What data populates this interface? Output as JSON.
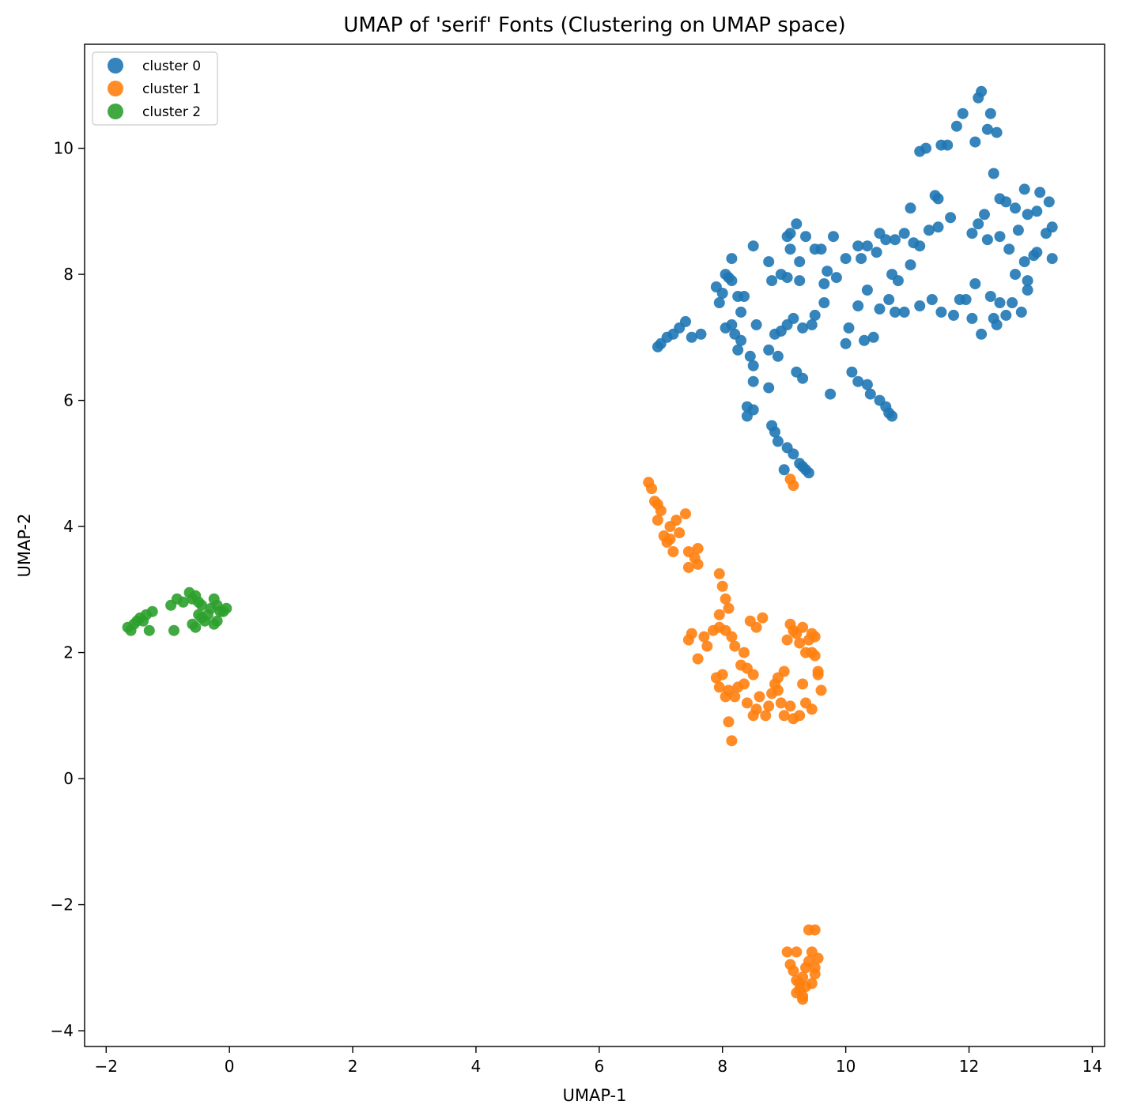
{
  "chart_data": {
    "type": "scatter",
    "title": "UMAP of 'serif' Fonts (Clustering on UMAP space)",
    "xlabel": "UMAP-1",
    "ylabel": "UMAP-2",
    "xlim": [
      -2.35,
      14.2
    ],
    "ylim": [
      -4.25,
      11.65
    ],
    "xticks": [
      -2,
      0,
      2,
      4,
      6,
      8,
      10,
      12,
      14
    ],
    "xtick_labels": [
      "−2",
      "0",
      "2",
      "4",
      "6",
      "8",
      "10",
      "12",
      "14"
    ],
    "yticks": [
      -4,
      -2,
      0,
      2,
      4,
      6,
      8,
      10
    ],
    "ytick_labels": [
      "−4",
      "−2",
      "0",
      "2",
      "4",
      "6",
      "8",
      "10"
    ],
    "grid": false,
    "legend_position": "top-left",
    "series": [
      {
        "name": "cluster 0",
        "color": "#1f77b4",
        "points": [
          [
            12.2,
            10.9
          ],
          [
            12.15,
            10.8
          ],
          [
            12.35,
            10.55
          ],
          [
            12.3,
            10.3
          ],
          [
            12.45,
            10.25
          ],
          [
            12.1,
            10.1
          ],
          [
            11.9,
            10.55
          ],
          [
            11.8,
            10.35
          ],
          [
            11.2,
            9.95
          ],
          [
            11.3,
            10.0
          ],
          [
            11.55,
            10.05
          ],
          [
            11.65,
            10.05
          ],
          [
            12.4,
            9.6
          ],
          [
            11.45,
            9.25
          ],
          [
            11.5,
            9.2
          ],
          [
            11.05,
            9.05
          ],
          [
            12.5,
            9.2
          ],
          [
            12.6,
            9.15
          ],
          [
            12.75,
            9.05
          ],
          [
            12.9,
            9.35
          ],
          [
            13.15,
            9.3
          ],
          [
            13.3,
            9.15
          ],
          [
            12.95,
            8.95
          ],
          [
            13.1,
            9.0
          ],
          [
            12.25,
            8.95
          ],
          [
            12.15,
            8.8
          ],
          [
            12.05,
            8.65
          ],
          [
            12.3,
            8.55
          ],
          [
            12.5,
            8.6
          ],
          [
            12.65,
            8.4
          ],
          [
            12.8,
            8.7
          ],
          [
            12.9,
            8.2
          ],
          [
            13.05,
            8.3
          ],
          [
            13.25,
            8.65
          ],
          [
            13.35,
            8.75
          ],
          [
            13.35,
            8.25
          ],
          [
            13.1,
            8.35
          ],
          [
            12.95,
            7.9
          ],
          [
            12.75,
            8.0
          ],
          [
            12.95,
            7.75
          ],
          [
            12.7,
            7.55
          ],
          [
            12.85,
            7.4
          ],
          [
            12.6,
            7.35
          ],
          [
            12.4,
            7.3
          ],
          [
            12.5,
            7.55
          ],
          [
            12.45,
            7.2
          ],
          [
            12.2,
            7.05
          ],
          [
            12.05,
            7.3
          ],
          [
            11.95,
            7.6
          ],
          [
            12.1,
            7.85
          ],
          [
            12.35,
            7.65
          ],
          [
            11.85,
            7.6
          ],
          [
            11.75,
            7.35
          ],
          [
            11.55,
            7.4
          ],
          [
            11.4,
            7.6
          ],
          [
            11.2,
            7.5
          ],
          [
            10.95,
            7.4
          ],
          [
            10.8,
            7.4
          ],
          [
            10.7,
            7.6
          ],
          [
            10.85,
            7.9
          ],
          [
            10.75,
            8.0
          ],
          [
            10.55,
            7.45
          ],
          [
            10.35,
            7.75
          ],
          [
            10.2,
            7.5
          ],
          [
            10.05,
            7.15
          ],
          [
            10.0,
            6.9
          ],
          [
            10.45,
            7.0
          ],
          [
            11.05,
            8.15
          ],
          [
            11.1,
            8.5
          ],
          [
            11.2,
            8.45
          ],
          [
            10.95,
            8.65
          ],
          [
            10.8,
            8.55
          ],
          [
            10.65,
            8.55
          ],
          [
            10.55,
            8.65
          ],
          [
            10.5,
            8.35
          ],
          [
            10.35,
            8.45
          ],
          [
            10.2,
            8.45
          ],
          [
            10.25,
            8.25
          ],
          [
            10.0,
            8.25
          ],
          [
            9.85,
            7.95
          ],
          [
            9.7,
            8.05
          ],
          [
            9.65,
            7.55
          ],
          [
            9.5,
            7.35
          ],
          [
            9.65,
            7.85
          ],
          [
            9.5,
            8.4
          ],
          [
            9.2,
            8.8
          ],
          [
            9.35,
            8.6
          ],
          [
            9.1,
            8.65
          ],
          [
            9.05,
            8.6
          ],
          [
            9.1,
            8.4
          ],
          [
            9.25,
            8.2
          ],
          [
            8.95,
            8.0
          ],
          [
            9.05,
            7.95
          ],
          [
            9.25,
            7.9
          ],
          [
            8.75,
            8.2
          ],
          [
            8.8,
            7.9
          ],
          [
            8.5,
            8.45
          ],
          [
            8.1,
            7.95
          ],
          [
            8.15,
            7.9
          ],
          [
            8.05,
            8.0
          ],
          [
            8.15,
            8.25
          ],
          [
            7.9,
            7.8
          ],
          [
            8.0,
            7.7
          ],
          [
            7.95,
            7.55
          ],
          [
            8.25,
            7.65
          ],
          [
            8.35,
            7.65
          ],
          [
            8.3,
            7.4
          ],
          [
            8.05,
            7.15
          ],
          [
            8.15,
            7.2
          ],
          [
            8.2,
            7.05
          ],
          [
            8.25,
            6.8
          ],
          [
            8.3,
            6.95
          ],
          [
            8.45,
            6.7
          ],
          [
            8.5,
            6.55
          ],
          [
            8.55,
            7.2
          ],
          [
            8.75,
            6.8
          ],
          [
            8.9,
            6.7
          ],
          [
            8.85,
            7.05
          ],
          [
            8.95,
            7.1
          ],
          [
            9.05,
            7.2
          ],
          [
            9.15,
            7.3
          ],
          [
            9.3,
            7.15
          ],
          [
            9.45,
            7.2
          ],
          [
            8.5,
            6.3
          ],
          [
            8.75,
            6.2
          ],
          [
            8.4,
            5.9
          ],
          [
            8.5,
            5.85
          ],
          [
            8.4,
            5.75
          ],
          [
            8.8,
            5.6
          ],
          [
            8.9,
            5.35
          ],
          [
            8.85,
            5.5
          ],
          [
            9.05,
            5.25
          ],
          [
            9.15,
            5.15
          ],
          [
            9.25,
            5.0
          ],
          [
            9.3,
            4.95
          ],
          [
            9.35,
            4.9
          ],
          [
            9.4,
            4.85
          ],
          [
            9.0,
            4.9
          ],
          [
            9.2,
            6.45
          ],
          [
            9.3,
            6.35
          ],
          [
            9.75,
            6.1
          ],
          [
            10.1,
            6.45
          ],
          [
            10.2,
            6.3
          ],
          [
            10.35,
            6.25
          ],
          [
            10.4,
            6.1
          ],
          [
            10.55,
            6.0
          ],
          [
            10.65,
            5.9
          ],
          [
            10.7,
            5.8
          ],
          [
            10.75,
            5.75
          ],
          [
            9.6,
            8.4
          ],
          [
            9.8,
            8.6
          ],
          [
            10.3,
            6.95
          ],
          [
            7.4,
            7.25
          ],
          [
            7.3,
            7.15
          ],
          [
            7.2,
            7.05
          ],
          [
            7.1,
            7.0
          ],
          [
            7.0,
            6.9
          ],
          [
            6.95,
            6.85
          ],
          [
            7.5,
            7.0
          ],
          [
            7.65,
            7.05
          ],
          [
            11.35,
            8.7
          ],
          [
            11.5,
            8.75
          ],
          [
            11.7,
            8.9
          ]
        ]
      },
      {
        "name": "cluster 1",
        "color": "#ff7f0e",
        "points": [
          [
            6.8,
            4.7
          ],
          [
            6.85,
            4.6
          ],
          [
            6.9,
            4.4
          ],
          [
            6.95,
            4.35
          ],
          [
            7.0,
            4.25
          ],
          [
            6.95,
            4.1
          ],
          [
            7.05,
            3.85
          ],
          [
            7.1,
            3.75
          ],
          [
            7.15,
            3.8
          ],
          [
            7.2,
            3.6
          ],
          [
            7.15,
            4.0
          ],
          [
            7.25,
            4.1
          ],
          [
            7.3,
            3.9
          ],
          [
            7.4,
            4.2
          ],
          [
            7.45,
            3.6
          ],
          [
            7.55,
            3.5
          ],
          [
            7.6,
            3.65
          ],
          [
            7.45,
            3.35
          ],
          [
            7.6,
            3.4
          ],
          [
            9.1,
            4.75
          ],
          [
            9.15,
            4.65
          ],
          [
            7.95,
            3.25
          ],
          [
            8.0,
            3.05
          ],
          [
            8.05,
            2.85
          ],
          [
            8.1,
            2.7
          ],
          [
            7.95,
            2.6
          ],
          [
            7.95,
            2.4
          ],
          [
            8.05,
            2.35
          ],
          [
            7.85,
            2.35
          ],
          [
            7.75,
            2.1
          ],
          [
            7.7,
            2.25
          ],
          [
            7.5,
            2.3
          ],
          [
            7.45,
            2.2
          ],
          [
            7.6,
            1.9
          ],
          [
            8.15,
            2.25
          ],
          [
            8.2,
            2.1
          ],
          [
            8.35,
            2.0
          ],
          [
            8.3,
            1.8
          ],
          [
            8.45,
            2.5
          ],
          [
            8.55,
            2.4
          ],
          [
            8.65,
            2.55
          ],
          [
            8.4,
            1.75
          ],
          [
            8.5,
            1.65
          ],
          [
            7.9,
            1.6
          ],
          [
            7.95,
            1.45
          ],
          [
            8.0,
            1.65
          ],
          [
            8.05,
            1.3
          ],
          [
            8.1,
            1.4
          ],
          [
            8.2,
            1.3
          ],
          [
            8.25,
            1.45
          ],
          [
            8.35,
            1.5
          ],
          [
            8.4,
            1.2
          ],
          [
            8.5,
            1.0
          ],
          [
            8.55,
            1.1
          ],
          [
            8.6,
            1.3
          ],
          [
            8.7,
            1.0
          ],
          [
            8.75,
            1.15
          ],
          [
            8.8,
            1.35
          ],
          [
            8.85,
            1.5
          ],
          [
            8.9,
            1.4
          ],
          [
            8.95,
            1.2
          ],
          [
            9.0,
            1.0
          ],
          [
            9.1,
            1.15
          ],
          [
            9.15,
            0.95
          ],
          [
            9.25,
            1.0
          ],
          [
            9.3,
            1.5
          ],
          [
            9.35,
            1.2
          ],
          [
            8.1,
            0.9
          ],
          [
            8.15,
            0.6
          ],
          [
            9.1,
            2.45
          ],
          [
            9.15,
            2.35
          ],
          [
            9.2,
            2.3
          ],
          [
            9.3,
            2.4
          ],
          [
            9.25,
            2.15
          ],
          [
            9.35,
            2.0
          ],
          [
            9.4,
            2.2
          ],
          [
            9.45,
            2.3
          ],
          [
            9.5,
            2.25
          ],
          [
            9.45,
            2.0
          ],
          [
            9.5,
            1.95
          ],
          [
            9.55,
            1.7
          ],
          [
            9.6,
            1.4
          ],
          [
            9.55,
            1.65
          ],
          [
            9.45,
            1.1
          ],
          [
            9.05,
            2.2
          ],
          [
            9.0,
            1.7
          ],
          [
            8.9,
            1.6
          ],
          [
            9.2,
            -2.75
          ],
          [
            9.05,
            -2.75
          ],
          [
            9.1,
            -2.95
          ],
          [
            9.15,
            -3.05
          ],
          [
            9.2,
            -3.2
          ],
          [
            9.25,
            -3.35
          ],
          [
            9.3,
            -3.45
          ],
          [
            9.2,
            -3.4
          ],
          [
            9.3,
            -3.15
          ],
          [
            9.35,
            -3.0
          ],
          [
            9.4,
            -2.9
          ],
          [
            9.45,
            -2.75
          ],
          [
            9.5,
            -3.0
          ],
          [
            9.55,
            -2.85
          ],
          [
            9.45,
            -3.25
          ],
          [
            9.35,
            -3.3
          ],
          [
            9.4,
            -2.4
          ],
          [
            9.5,
            -2.4
          ],
          [
            9.25,
            -3.25
          ],
          [
            9.3,
            -3.5
          ],
          [
            9.5,
            -3.1
          ]
        ]
      },
      {
        "name": "cluster 2",
        "color": "#2ca02c",
        "points": [
          [
            -1.65,
            2.4
          ],
          [
            -1.6,
            2.35
          ],
          [
            -1.55,
            2.45
          ],
          [
            -1.5,
            2.5
          ],
          [
            -1.45,
            2.55
          ],
          [
            -1.4,
            2.5
          ],
          [
            -1.35,
            2.6
          ],
          [
            -1.25,
            2.65
          ],
          [
            -1.3,
            2.35
          ],
          [
            -0.9,
            2.35
          ],
          [
            -0.95,
            2.75
          ],
          [
            -0.85,
            2.85
          ],
          [
            -0.75,
            2.8
          ],
          [
            -0.65,
            2.95
          ],
          [
            -0.6,
            2.85
          ],
          [
            -0.55,
            2.9
          ],
          [
            -0.5,
            2.8
          ],
          [
            -0.45,
            2.75
          ],
          [
            -0.5,
            2.6
          ],
          [
            -0.45,
            2.55
          ],
          [
            -0.4,
            2.5
          ],
          [
            -0.35,
            2.6
          ],
          [
            -0.3,
            2.7
          ],
          [
            -0.25,
            2.85
          ],
          [
            -0.2,
            2.75
          ],
          [
            -0.15,
            2.65
          ],
          [
            -0.1,
            2.65
          ],
          [
            -0.2,
            2.5
          ],
          [
            -0.25,
            2.45
          ],
          [
            -0.6,
            2.45
          ],
          [
            -0.55,
            2.4
          ],
          [
            -0.05,
            2.7
          ]
        ]
      }
    ]
  }
}
